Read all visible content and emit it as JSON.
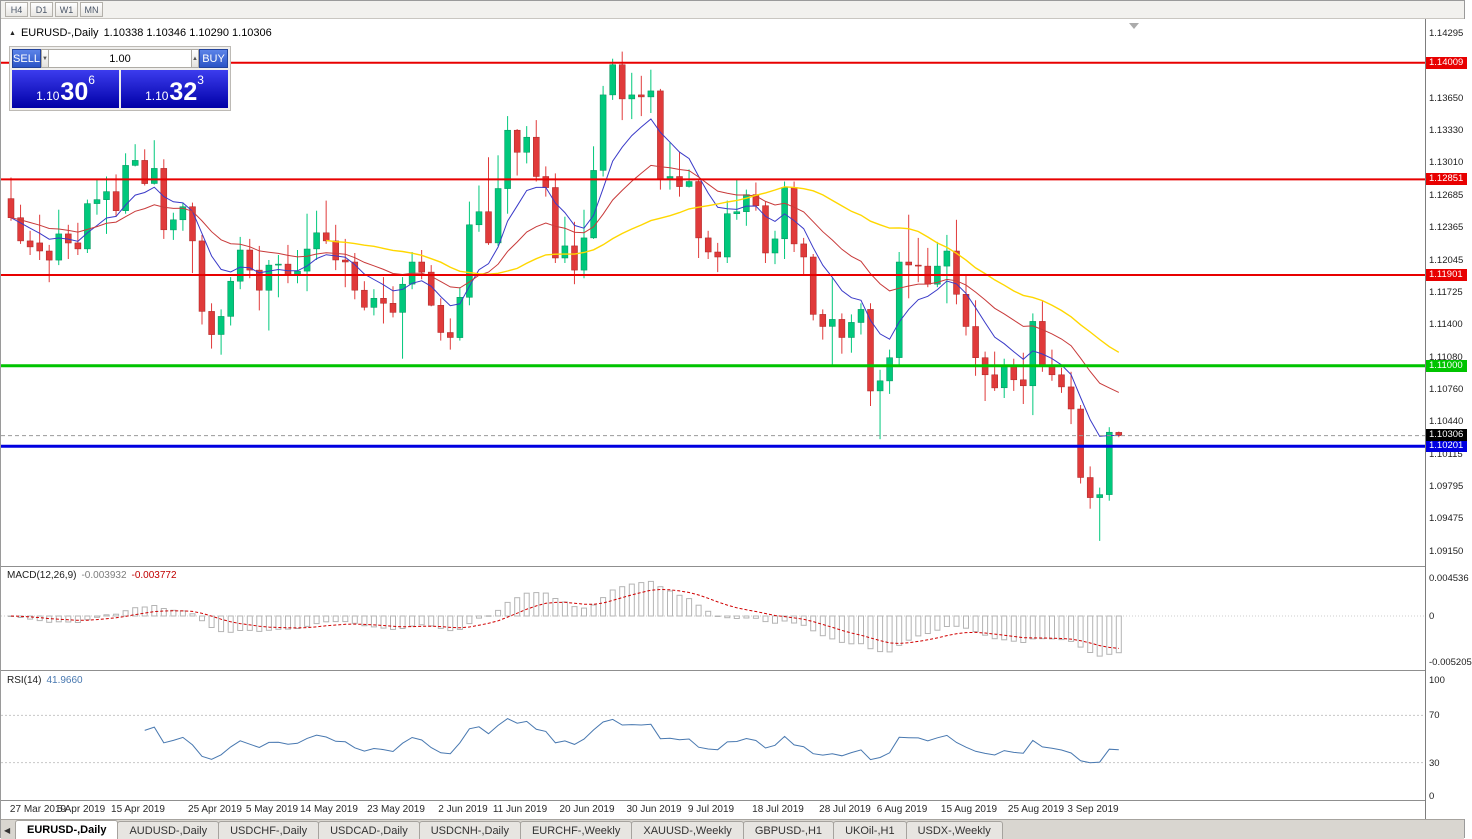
{
  "toolbar": {
    "timeframes": [
      "H4",
      "D1",
      "W1",
      "MN"
    ]
  },
  "icons": {
    "collapse": "▲",
    "scroll_left": "◀",
    "spinner_down": "▼",
    "spinner_up": "▲"
  },
  "header": {
    "title": "EURUSD-,Daily",
    "ohlc": "1.10338 1.10346 1.10290 1.10306"
  },
  "trade_panel": {
    "sell_label": "SELL",
    "buy_label": "BUY",
    "volume": "1.00",
    "sell_price": {
      "prefix": "1.10",
      "main": "30",
      "sup": "6"
    },
    "buy_price": {
      "prefix": "1.10",
      "main": "32",
      "sup": "3"
    }
  },
  "indicators": {
    "macd": {
      "label": "MACD(12,26,9)",
      "value1": "-0.003932",
      "value2": "-0.003772",
      "params": {
        "fast": 12,
        "slow": 26,
        "signal": 9
      },
      "axis": [
        "0.004536",
        "0",
        "-0.005205"
      ],
      "hist_color": "#b4b4b4",
      "signal_color": "#d00000"
    },
    "rsi": {
      "label": "RSI(14)",
      "value": "41.9660",
      "period": 14,
      "axis": [
        "100",
        "70",
        "30",
        "0"
      ],
      "levels": [
        70,
        30
      ],
      "color": "#4878b0"
    }
  },
  "tabs": {
    "items": [
      {
        "label": "EURUSD-,Daily",
        "active": true
      },
      {
        "label": "AUDUSD-,Daily",
        "active": false
      },
      {
        "label": "USDCHF-,Daily",
        "active": false
      },
      {
        "label": "USDCAD-,Daily",
        "active": false
      },
      {
        "label": "USDCNH-,Daily",
        "active": false
      },
      {
        "label": "EURCHF-,Weekly",
        "active": false
      },
      {
        "label": "XAUUSD-,Weekly",
        "active": false
      },
      {
        "label": "GBPUSD-,H1",
        "active": false
      },
      {
        "label": "UKOil-,H1",
        "active": false
      },
      {
        "label": "USDX-,Weekly",
        "active": false
      }
    ]
  },
  "chart_data": {
    "type": "candlestick",
    "symbol": "EURUSD-",
    "timeframe": "Daily",
    "title": "EURUSD-,Daily 1.10338 1.10346 1.10290 1.10306",
    "current": {
      "price": 1.10306,
      "label": "1.10306"
    },
    "y_ticks": [
      "1.14295",
      "1.13650",
      "1.13330",
      "1.13010",
      "1.12685",
      "1.12365",
      "1.12045",
      "1.11725",
      "1.11400",
      "1.11080",
      "1.10760",
      "1.10440",
      "1.10115",
      "1.09795",
      "1.09475",
      "1.09150"
    ],
    "levels": [
      {
        "price": 1.14009,
        "label": "1.14009",
        "color": "#e80000",
        "thickness": 2
      },
      {
        "price": 1.12851,
        "label": "1.12851",
        "color": "#e80000",
        "thickness": 2
      },
      {
        "price": 1.11901,
        "label": "1.11901",
        "color": "#e80000",
        "thickness": 2
      },
      {
        "price": 1.11,
        "label": "1.11000",
        "color": "#00c400",
        "thickness": 3
      },
      {
        "price": 1.10201,
        "label": "1.10201",
        "color": "#0000e0",
        "thickness": 3
      }
    ],
    "ma": [
      {
        "period": 8,
        "color": "#3a3ac8",
        "width": 1,
        "type": "ema"
      },
      {
        "period": 20,
        "color": "#c83a3a",
        "width": 1,
        "type": "ema"
      },
      {
        "period": 34,
        "color": "#ffd700",
        "width": 1.4,
        "type": "sma"
      }
    ],
    "colors": {
      "up": "#00c87c",
      "up_stroke": "#00915a",
      "down": "#e03a3a",
      "down_stroke": "#a82424"
    },
    "x_ticks": [
      {
        "label": "27 Mar 2019",
        "i": 0
      },
      {
        "label": "5 Apr 2019",
        "i": 7
      },
      {
        "label": "15 Apr 2019",
        "i": 13
      },
      {
        "label": "25 Apr 2019",
        "i": 21
      },
      {
        "label": "5 May 2019",
        "i": 27
      },
      {
        "label": "14 May 2019",
        "i": 33
      },
      {
        "label": "23 May 2019",
        "i": 40
      },
      {
        "label": "2 Jun 2019",
        "i": 47
      },
      {
        "label": "11 Jun 2019",
        "i": 53
      },
      {
        "label": "20 Jun 2019",
        "i": 60
      },
      {
        "label": "30 Jun 2019",
        "i": 67
      },
      {
        "label": "9 Jul 2019",
        "i": 73
      },
      {
        "label": "18 Jul 2019",
        "i": 80
      },
      {
        "label": "28 Jul 2019",
        "i": 87
      },
      {
        "label": "6 Aug 2019",
        "i": 93
      },
      {
        "label": "15 Aug 2019",
        "i": 100
      },
      {
        "label": "25 Aug 2019",
        "i": 107
      },
      {
        "label": "3 Sep 2019",
        "i": 113
      }
    ],
    "candles": [
      [
        1.1266,
        1.1287,
        1.1244,
        1.1247
      ],
      [
        1.1247,
        1.126,
        1.1221,
        1.1224
      ],
      [
        1.1224,
        1.1234,
        1.121,
        1.1218
      ],
      [
        1.1222,
        1.125,
        1.1205,
        1.1214
      ],
      [
        1.1214,
        1.122,
        1.1183,
        1.1205
      ],
      [
        1.1205,
        1.1255,
        1.12,
        1.1231
      ],
      [
        1.1231,
        1.124,
        1.1206,
        1.1222
      ],
      [
        1.1222,
        1.1242,
        1.121,
        1.1216
      ],
      [
        1.1216,
        1.1265,
        1.1212,
        1.1261
      ],
      [
        1.1261,
        1.1285,
        1.125,
        1.1265
      ],
      [
        1.1265,
        1.1288,
        1.1231,
        1.1273
      ],
      [
        1.1273,
        1.129,
        1.1248,
        1.1254
      ],
      [
        1.1254,
        1.1311,
        1.1251,
        1.1299
      ],
      [
        1.1299,
        1.132,
        1.1298,
        1.1304
      ],
      [
        1.1304,
        1.1315,
        1.1279,
        1.1281
      ],
      [
        1.1281,
        1.1324,
        1.128,
        1.1296
      ],
      [
        1.1296,
        1.1305,
        1.1226,
        1.1235
      ],
      [
        1.1235,
        1.1252,
        1.1225,
        1.1245
      ],
      [
        1.1245,
        1.1262,
        1.1234,
        1.1258
      ],
      [
        1.1258,
        1.1262,
        1.1192,
        1.1224
      ],
      [
        1.1224,
        1.123,
        1.1141,
        1.1154
      ],
      [
        1.1154,
        1.1162,
        1.1117,
        1.1131
      ],
      [
        1.1131,
        1.1156,
        1.1111,
        1.1149
      ],
      [
        1.1149,
        1.1188,
        1.114,
        1.1184
      ],
      [
        1.1184,
        1.1228,
        1.1176,
        1.1215
      ],
      [
        1.1215,
        1.1226,
        1.1187,
        1.1195
      ],
      [
        1.1195,
        1.1219,
        1.1155,
        1.1175
      ],
      [
        1.1175,
        1.1205,
        1.1135,
        1.12
      ],
      [
        1.12,
        1.121,
        1.1168,
        1.1201
      ],
      [
        1.1201,
        1.122,
        1.1182,
        1.119
      ],
      [
        1.119,
        1.1215,
        1.1182,
        1.1194
      ],
      [
        1.1194,
        1.1251,
        1.1174,
        1.1216
      ],
      [
        1.1216,
        1.1254,
        1.1205,
        1.1232
      ],
      [
        1.1232,
        1.1264,
        1.1221,
        1.1224
      ],
      [
        1.1224,
        1.124,
        1.1195,
        1.1205
      ],
      [
        1.1205,
        1.1226,
        1.1178,
        1.1203
      ],
      [
        1.1203,
        1.1212,
        1.1166,
        1.1175
      ],
      [
        1.1175,
        1.1184,
        1.1155,
        1.1158
      ],
      [
        1.1158,
        1.1176,
        1.115,
        1.1167
      ],
      [
        1.1167,
        1.1188,
        1.1142,
        1.1162
      ],
      [
        1.1162,
        1.1179,
        1.1148,
        1.1153
      ],
      [
        1.1153,
        1.1188,
        1.1107,
        1.1181
      ],
      [
        1.1181,
        1.1213,
        1.1176,
        1.1203
      ],
      [
        1.1203,
        1.1215,
        1.1186,
        1.1193
      ],
      [
        1.1193,
        1.12,
        1.1159,
        1.116
      ],
      [
        1.116,
        1.1167,
        1.1125,
        1.1133
      ],
      [
        1.1133,
        1.1147,
        1.1116,
        1.1128
      ],
      [
        1.1128,
        1.1178,
        1.1125,
        1.1168
      ],
      [
        1.1168,
        1.1263,
        1.116,
        1.124
      ],
      [
        1.124,
        1.1279,
        1.1233,
        1.1253
      ],
      [
        1.1253,
        1.1307,
        1.122,
        1.1222
      ],
      [
        1.1222,
        1.1309,
        1.1219,
        1.1276
      ],
      [
        1.1276,
        1.1348,
        1.1251,
        1.1334
      ],
      [
        1.1334,
        1.1335,
        1.1289,
        1.1312
      ],
      [
        1.1312,
        1.1338,
        1.1301,
        1.1327
      ],
      [
        1.1327,
        1.1344,
        1.1283,
        1.1288
      ],
      [
        1.1288,
        1.1298,
        1.1268,
        1.1277
      ],
      [
        1.1277,
        1.1291,
        1.1202,
        1.1207
      ],
      [
        1.1207,
        1.1248,
        1.1202,
        1.1219
      ],
      [
        1.1219,
        1.1243,
        1.1181,
        1.1195
      ],
      [
        1.1195,
        1.1255,
        1.1187,
        1.1227
      ],
      [
        1.1227,
        1.1318,
        1.1226,
        1.1294
      ],
      [
        1.1294,
        1.1378,
        1.1288,
        1.1369
      ],
      [
        1.1369,
        1.1405,
        1.1364,
        1.1399
      ],
      [
        1.1399,
        1.1412,
        1.1344,
        1.1365
      ],
      [
        1.1365,
        1.1391,
        1.1345,
        1.1369
      ],
      [
        1.1369,
        1.1388,
        1.1348,
        1.1367
      ],
      [
        1.1367,
        1.1394,
        1.1351,
        1.1373
      ],
      [
        1.1373,
        1.1375,
        1.1275,
        1.1285
      ],
      [
        1.1285,
        1.1322,
        1.1275,
        1.1288
      ],
      [
        1.1288,
        1.1312,
        1.1268,
        1.1278
      ],
      [
        1.1278,
        1.1295,
        1.1277,
        1.1283
      ],
      [
        1.1283,
        1.1286,
        1.1207,
        1.1227
      ],
      [
        1.1227,
        1.1234,
        1.1206,
        1.1213
      ],
      [
        1.1213,
        1.1222,
        1.1193,
        1.1208
      ],
      [
        1.1208,
        1.1264,
        1.1202,
        1.1251
      ],
      [
        1.1251,
        1.1286,
        1.1245,
        1.1253
      ],
      [
        1.1253,
        1.1275,
        1.1239,
        1.127
      ],
      [
        1.127,
        1.1282,
        1.1254,
        1.1259
      ],
      [
        1.1259,
        1.1263,
        1.1202,
        1.1212
      ],
      [
        1.1212,
        1.1234,
        1.1201,
        1.1226
      ],
      [
        1.1226,
        1.1283,
        1.1206,
        1.1277
      ],
      [
        1.1277,
        1.1283,
        1.1213,
        1.1221
      ],
      [
        1.1221,
        1.1227,
        1.119,
        1.1208
      ],
      [
        1.1208,
        1.1211,
        1.1145,
        1.1151
      ],
      [
        1.1151,
        1.1156,
        1.1126,
        1.1139
      ],
      [
        1.1139,
        1.1187,
        1.1101,
        1.1146
      ],
      [
        1.1146,
        1.1152,
        1.1112,
        1.1128
      ],
      [
        1.1128,
        1.1151,
        1.1113,
        1.1143
      ],
      [
        1.1143,
        1.1162,
        1.1131,
        1.1156
      ],
      [
        1.1156,
        1.1162,
        1.106,
        1.1075
      ],
      [
        1.1075,
        1.1096,
        1.1027,
        1.1085
      ],
      [
        1.1085,
        1.1116,
        1.1072,
        1.1108
      ],
      [
        1.1108,
        1.1213,
        1.1101,
        1.1203
      ],
      [
        1.1203,
        1.125,
        1.1167,
        1.12
      ],
      [
        1.12,
        1.1227,
        1.1183,
        1.1199
      ],
      [
        1.1199,
        1.1217,
        1.1178,
        1.1181
      ],
      [
        1.1181,
        1.1223,
        1.1178,
        1.1199
      ],
      [
        1.1199,
        1.123,
        1.1162,
        1.1214
      ],
      [
        1.1214,
        1.1245,
        1.1161,
        1.1171
      ],
      [
        1.1171,
        1.1191,
        1.113,
        1.1139
      ],
      [
        1.1139,
        1.1165,
        1.109,
        1.1108
      ],
      [
        1.1108,
        1.1114,
        1.1065,
        1.1091
      ],
      [
        1.1091,
        1.1114,
        1.1075,
        1.1078
      ],
      [
        1.1078,
        1.1107,
        1.1068,
        1.1099
      ],
      [
        1.1099,
        1.1107,
        1.1075,
        1.1086
      ],
      [
        1.1086,
        1.1113,
        1.1062,
        1.108
      ],
      [
        1.108,
        1.1152,
        1.1051,
        1.1144
      ],
      [
        1.1144,
        1.1164,
        1.1094,
        1.1101
      ],
      [
        1.1101,
        1.1116,
        1.1085,
        1.1091
      ],
      [
        1.1091,
        1.1098,
        1.1073,
        1.1079
      ],
      [
        1.1079,
        1.1094,
        1.1042,
        1.1057
      ],
      [
        1.1057,
        1.1061,
        1.0983,
        1.0989
      ],
      [
        1.0989,
        1.1,
        1.0958,
        1.0969
      ],
      [
        1.0969,
        1.0979,
        1.0926,
        1.0972
      ],
      [
        1.0972,
        1.1039,
        1.0966,
        1.1034
      ],
      [
        1.10338,
        1.10346,
        1.1029,
        1.10306
      ]
    ]
  }
}
